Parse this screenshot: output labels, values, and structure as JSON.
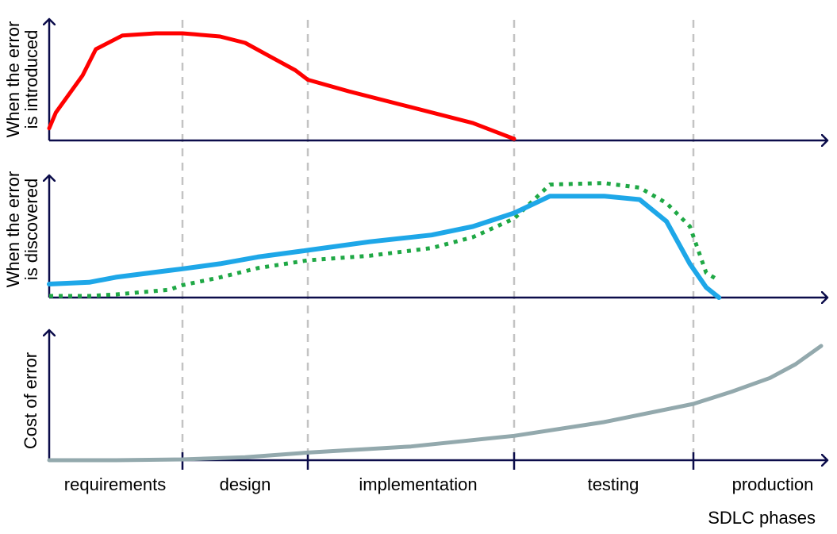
{
  "colors": {
    "axis": "#0b0c4a",
    "divider": "#c3c3c3",
    "introduced": "#ff0000",
    "discovered_solid": "#1ea7e8",
    "discovered_dotted": "#1fa845",
    "cost": "#93a9ad"
  },
  "panels": {
    "top": {
      "ylabel_line1": "When the error",
      "ylabel_line2": "is introduced"
    },
    "middle": {
      "ylabel_line1": "When the error",
      "ylabel_line2": "is discovered"
    },
    "bottom": {
      "ylabel_line1": "Cost of error"
    }
  },
  "phases": [
    "requirements",
    "design",
    "implementation",
    "testing",
    "production"
  ],
  "xlabel": "SDLC phases",
  "chart_data": [
    {
      "type": "line",
      "title": "",
      "xlabel": "",
      "ylabel": "When the error is introduced",
      "x": [
        0,
        0.05,
        0.25,
        0.35,
        0.55,
        0.8,
        1,
        1.1,
        1.3,
        1.5,
        1.7,
        1.9,
        2,
        2.2,
        2.5,
        2.8,
        3
      ],
      "series": [
        {
          "values": [
            0.1,
            0.25,
            0.6,
            0.85,
            0.98,
            1.0,
            1.0,
            0.99,
            0.97,
            0.91,
            0.78,
            0.65,
            0.56,
            0.45,
            0.3,
            0.15,
            0.0
          ]
        }
      ]
    },
    {
      "type": "line",
      "title": "",
      "xlabel": "",
      "ylabel": "When the error is discovered",
      "x": [
        0,
        0.3,
        0.5,
        0.9,
        1,
        1.3,
        1.6,
        2,
        2.3,
        2.6,
        2.8,
        3,
        3.2,
        3.5,
        3.7,
        3.85,
        3.98,
        4.1,
        4.2
      ],
      "series": [
        {
          "values": [
            0.08,
            0.09,
            0.12,
            0.16,
            0.17,
            0.2,
            0.24,
            0.28,
            0.33,
            0.37,
            0.42,
            0.5,
            0.6,
            0.6,
            0.58,
            0.45,
            0.2,
            0.06,
            0.0
          ]
        },
        {
          "values": [
            0.0,
            0.0,
            0.01,
            0.04,
            0.07,
            0.12,
            0.18,
            0.23,
            0.26,
            0.31,
            0.38,
            0.5,
            0.72,
            0.73,
            0.7,
            0.6,
            0.45,
            0.15,
            0.1
          ]
        }
      ]
    },
    {
      "type": "line",
      "title": "",
      "xlabel": "SDLC phases",
      "ylabel": "Cost of error",
      "x": [
        0,
        0.5,
        1,
        1.5,
        2,
        2.5,
        3,
        3.5,
        4,
        4.3,
        4.6,
        4.8,
        5
      ],
      "series": [
        {
          "values": [
            0.0,
            0.0,
            0.005,
            0.02,
            0.05,
            0.09,
            0.16,
            0.25,
            0.37,
            0.45,
            0.54,
            0.63,
            0.75
          ]
        }
      ]
    }
  ]
}
